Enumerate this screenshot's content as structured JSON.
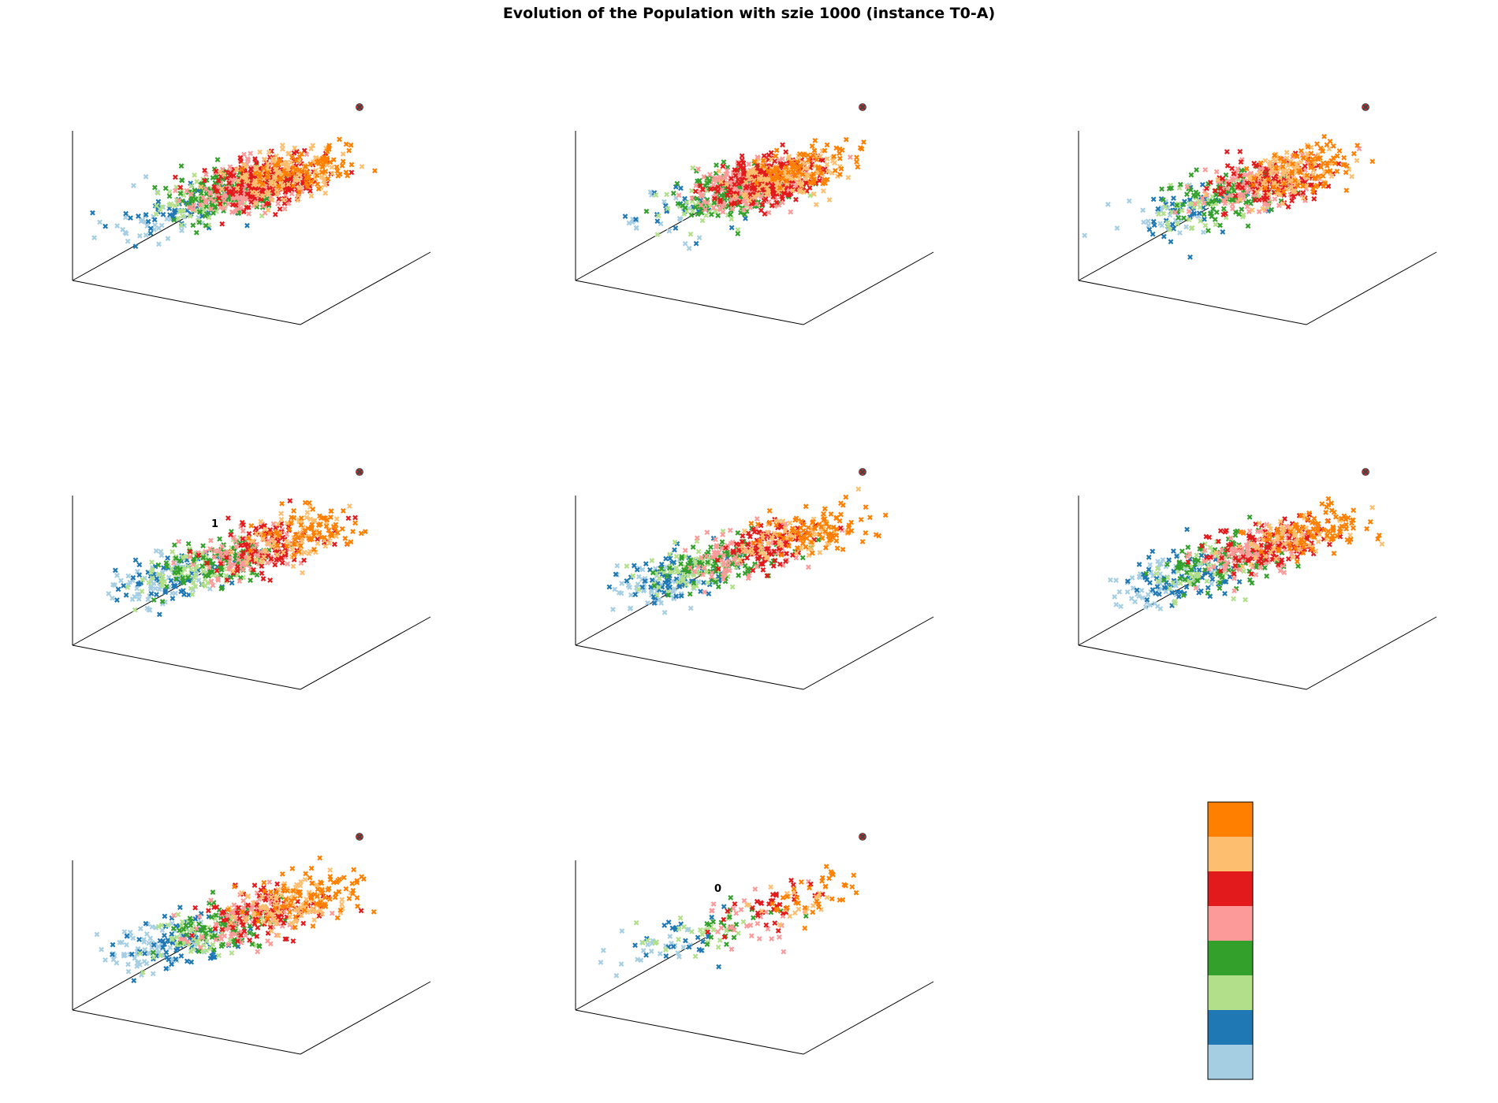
{
  "title": "Evolution of the Population with szie 1000 (instance T0-A)",
  "colors": {
    "palette": [
      "#a6cee3",
      "#1f78b4",
      "#b2df8a",
      "#33a02c",
      "#fb9a99",
      "#e31a1c",
      "#fdbf6f",
      "#ff7f00"
    ],
    "best_marker": "#d62728"
  },
  "chart_data": {
    "type": "scatter",
    "subtype": "3d-scatter-grid",
    "marker": "x",
    "grid": false,
    "axes_ticks_visible": false,
    "panels": [
      {
        "annotation": "",
        "spread": 0.28,
        "low_fraction": 0.1,
        "approx_points": 1000
      },
      {
        "annotation": "",
        "spread": 0.25,
        "low_fraction": 0.05,
        "approx_points": 1000
      },
      {
        "annotation": "",
        "spread": 0.32,
        "low_fraction": 0.12,
        "approx_points": 700
      },
      {
        "annotation": "1",
        "spread": 0.4,
        "low_fraction": 0.25,
        "approx_points": 700
      },
      {
        "annotation": "",
        "spread": 0.4,
        "low_fraction": 0.25,
        "approx_points": 700
      },
      {
        "annotation": "",
        "spread": 0.42,
        "low_fraction": 0.22,
        "approx_points": 700
      },
      {
        "annotation": "",
        "spread": 0.42,
        "low_fraction": 0.2,
        "approx_points": 700
      },
      {
        "annotation": "0",
        "spread": 0.45,
        "low_fraction": 0.3,
        "approx_points": 220
      }
    ],
    "colorbar": {
      "levels": 8,
      "colors_bottom_to_top": [
        "#a6cee3",
        "#1f78b4",
        "#b2df8a",
        "#33a02c",
        "#fb9a99",
        "#e31a1c",
        "#fdbf6f",
        "#ff7f00"
      ],
      "tick_labels": []
    }
  }
}
